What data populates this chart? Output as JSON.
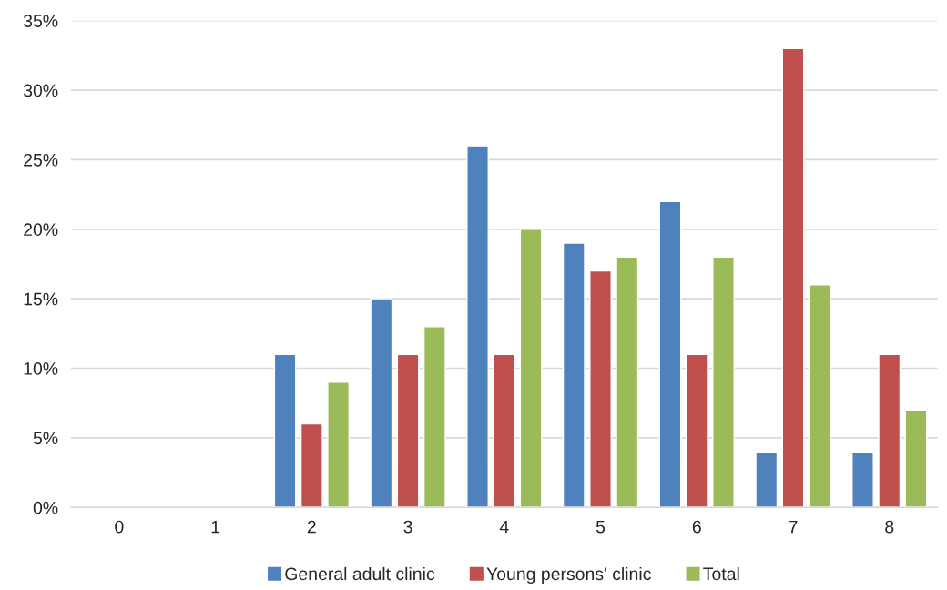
{
  "chart_data": {
    "type": "bar",
    "categories": [
      "0",
      "1",
      "2",
      "3",
      "4",
      "5",
      "6",
      "7",
      "8"
    ],
    "series": [
      {
        "name": "General adult clinic",
        "color": "#4f81bd",
        "values": [
          null,
          null,
          11,
          15,
          26,
          19,
          22,
          4,
          4
        ]
      },
      {
        "name": "Young persons' clinic",
        "color": "#c0504d",
        "values": [
          null,
          null,
          6,
          11,
          11,
          17,
          11,
          33,
          11
        ]
      },
      {
        "name": "Total",
        "color": "#9bbb59",
        "values": [
          null,
          null,
          9,
          13,
          20,
          18,
          18,
          16,
          7
        ]
      }
    ],
    "ylim": [
      0,
      35
    ],
    "yticks": [
      {
        "value": 0,
        "label": "0%"
      },
      {
        "value": 5,
        "label": "5%"
      },
      {
        "value": 10,
        "label": "10%"
      },
      {
        "value": 15,
        "label": "15%"
      },
      {
        "value": 20,
        "label": "20%"
      },
      {
        "value": 25,
        "label": "25%"
      },
      {
        "value": 30,
        "label": "30%"
      },
      {
        "value": 35,
        "label": "35%"
      }
    ],
    "grid": "y",
    "legend": "bottom"
  }
}
